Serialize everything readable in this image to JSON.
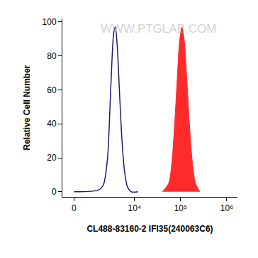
{
  "chart_data": {
    "type": "line",
    "x_label": "CL488-83160-2 IFI35(240063C6)",
    "y_label": "Relative Cell Number",
    "annotations": [
      "WWW.PTGLAB.COM"
    ],
    "log": "x",
    "grid": false,
    "x": [
      0,
      1500,
      2000,
      2500,
      3000,
      3500,
      3800,
      4200,
      4700,
      5300,
      6000,
      7000,
      8500,
      12000,
      40000,
      55000,
      65000,
      75000,
      85000,
      95000,
      107000,
      120000,
      135000,
      155000,
      180000,
      210000,
      260000
    ],
    "series": [
      {
        "color": "#1c1c7a",
        "values": [
          0,
          1,
          4,
          19,
          62,
          94,
          97,
          85,
          58,
          31,
          13,
          3,
          0,
          0,
          null,
          null,
          null,
          null,
          null,
          null,
          null,
          null,
          null,
          null,
          null,
          null,
          null
        ]
      },
      {
        "color": "#ff2b2b",
        "values": [
          null,
          null,
          null,
          null,
          null,
          null,
          null,
          null,
          null,
          null,
          null,
          null,
          null,
          null,
          0,
          5,
          18,
          42,
          68,
          89,
          97,
          89,
          68,
          40,
          17,
          5,
          0
        ],
        "marker": "filled"
      }
    ],
    "xlim": [
      -600,
      1700000
    ],
    "xticks": [
      0,
      {
        "value": 10000,
        "label": "10⁴"
      },
      {
        "value": 100000,
        "label": "10⁵"
      },
      {
        "value": 1000000,
        "label": "10⁶"
      }
    ],
    "ylim": [
      -3,
      102
    ],
    "yticks": [
      0,
      20,
      40,
      60,
      80,
      100
    ]
  }
}
